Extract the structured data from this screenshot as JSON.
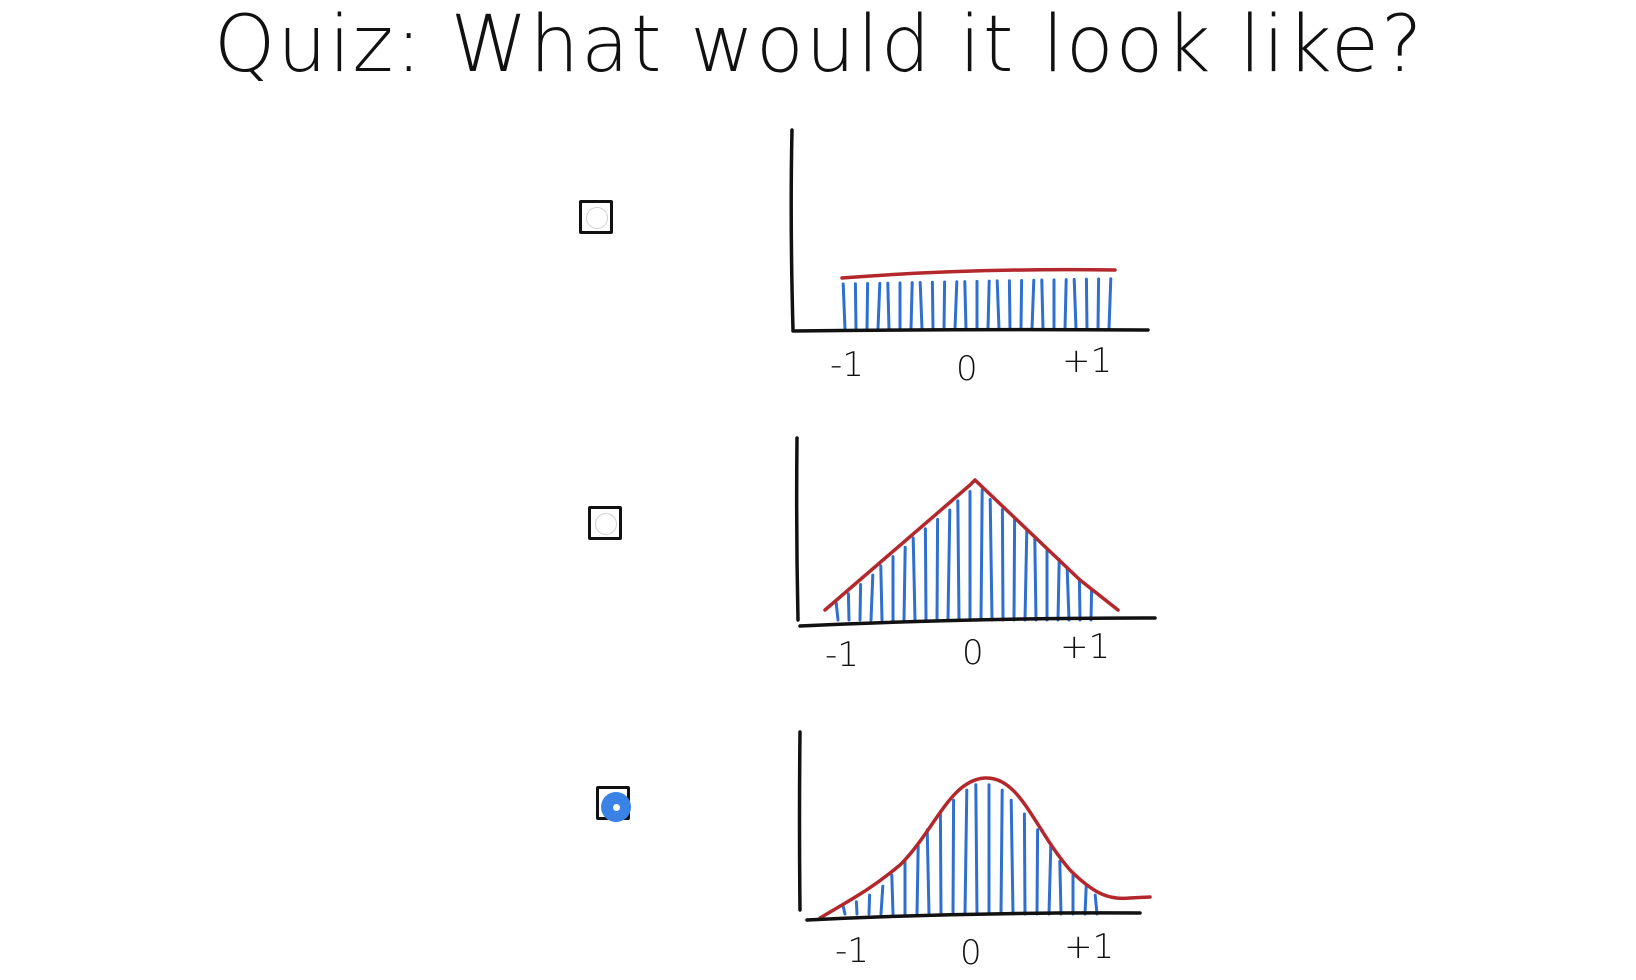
{
  "title": "Quiz: What would it look like?",
  "colors": {
    "axis": "#111111",
    "curve": "#b3282d",
    "bars": "#2f6fd0",
    "selection": "#3b82e6"
  },
  "options": [
    {
      "id": "uniform",
      "selected": false,
      "tick_labels": [
        "-1",
        "0",
        "+1"
      ]
    },
    {
      "id": "triangular",
      "selected": false,
      "tick_labels": [
        "-1",
        "0",
        "+1"
      ]
    },
    {
      "id": "bell",
      "selected": true,
      "tick_labels": [
        "-1",
        "0",
        "+1"
      ]
    }
  ],
  "chart_data": [
    {
      "type": "bar",
      "shape": "uniform",
      "x": [
        -1,
        1
      ],
      "density": "constant",
      "tick_labels": [
        "-1",
        "0",
        "+1"
      ]
    },
    {
      "type": "bar",
      "shape": "triangular",
      "x": [
        -1,
        1
      ],
      "peak_at": 0,
      "tick_labels": [
        "-1",
        "0",
        "+1"
      ]
    },
    {
      "type": "bar",
      "shape": "bell",
      "x": [
        -1,
        1
      ],
      "peak_at": 0,
      "tick_labels": [
        "-1",
        "0",
        "+1"
      ]
    }
  ]
}
